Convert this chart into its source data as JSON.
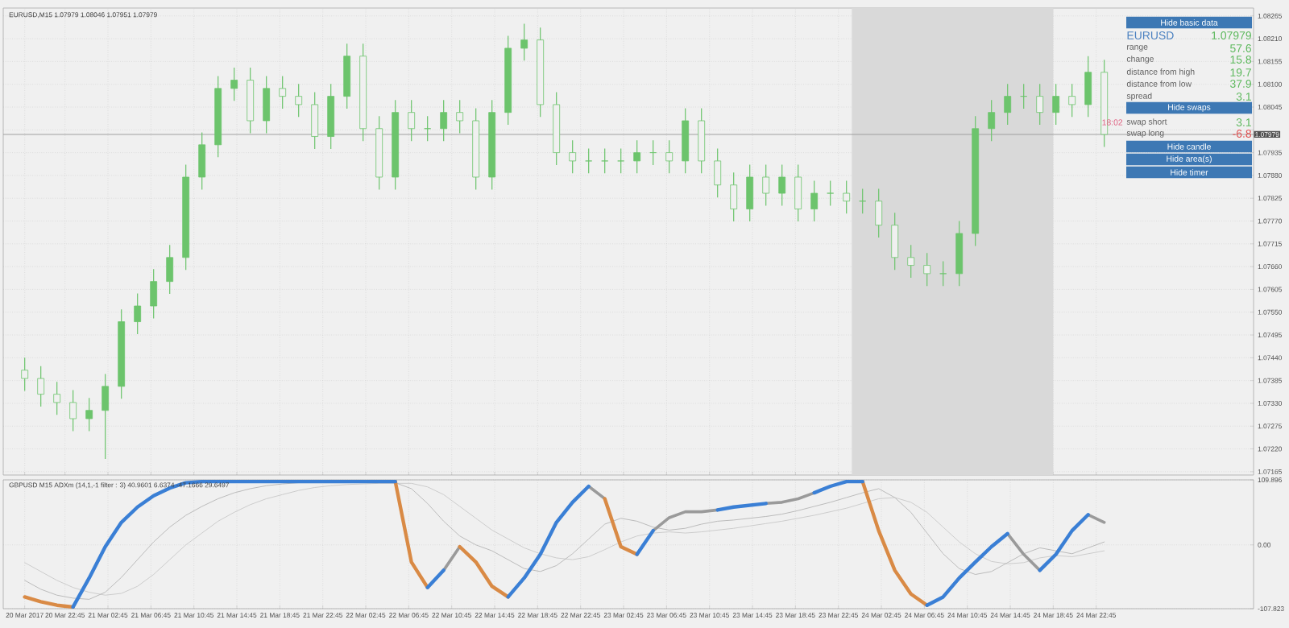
{
  "chart_data": [
    {
      "type": "candlestick",
      "title": "EURUSD,M15  1.07979 1.08046 1.07951 1.07979",
      "color": "#6cc46c",
      "x": [
        "2017-03-20T19:00",
        "2017-03-20T20:30",
        "2017-03-20T22:00",
        "2017-03-20T23:30",
        "2017-03-21T01:00",
        "2017-03-21T02:30",
        "2017-03-21T04:00",
        "2017-03-21T05:30",
        "2017-03-21T07:00",
        "2017-03-21T08:30",
        "2017-03-21T10:00",
        "2017-03-21T11:30",
        "2017-03-21T13:00",
        "2017-03-21T14:30",
        "2017-03-21T16:00",
        "2017-03-21T17:30",
        "2017-03-21T19:00",
        "2017-03-21T20:30",
        "2017-03-21T22:00",
        "2017-03-21T23:30",
        "2017-03-22T01:00",
        "2017-03-22T02:30",
        "2017-03-22T04:00",
        "2017-03-22T05:30",
        "2017-03-22T07:00",
        "2017-03-22T08:30",
        "2017-03-22T10:00",
        "2017-03-22T11:30",
        "2017-03-22T13:00",
        "2017-03-22T14:30",
        "2017-03-22T16:00",
        "2017-03-22T17:30",
        "2017-03-22T19:00",
        "2017-03-22T20:30",
        "2017-03-22T22:00",
        "2017-03-22T23:30",
        "2017-03-23T01:00",
        "2017-03-23T02:30",
        "2017-03-23T04:00",
        "2017-03-23T05:30",
        "2017-03-23T07:00",
        "2017-03-23T08:30",
        "2017-03-23T10:00",
        "2017-03-23T11:30",
        "2017-03-23T13:00",
        "2017-03-23T14:30",
        "2017-03-23T16:00",
        "2017-03-23T17:30",
        "2017-03-23T19:00",
        "2017-03-23T20:30",
        "2017-03-23T22:00",
        "2017-03-23T23:30",
        "2017-03-24T01:00",
        "2017-03-24T02:30",
        "2017-03-24T04:00",
        "2017-03-24T05:30",
        "2017-03-24T07:00",
        "2017-03-24T08:30",
        "2017-03-24T10:00",
        "2017-03-24T11:30",
        "2017-03-24T13:00",
        "2017-03-24T14:30",
        "2017-03-24T16:00",
        "2017-03-24T17:30",
        "2017-03-24T19:00",
        "2017-03-24T20:30",
        "2017-03-24T22:00",
        "2017-03-24T23:30"
      ],
      "ohlc": [
        [
          1.0741,
          1.0744,
          1.0736,
          1.0739
        ],
        [
          1.0739,
          1.0742,
          1.07322,
          1.07352
        ],
        [
          1.07352,
          1.07382,
          1.07302,
          1.07332
        ],
        [
          1.07332,
          1.07362,
          1.07263,
          1.07293
        ],
        [
          1.07293,
          1.07343,
          1.07263,
          1.07313
        ],
        [
          1.07313,
          1.07401,
          1.07196,
          1.07371
        ],
        [
          1.07371,
          1.07557,
          1.07341,
          1.07527
        ],
        [
          1.07527,
          1.07595,
          1.07497,
          1.07565
        ],
        [
          1.07565,
          1.07654,
          1.07535,
          1.07624
        ],
        [
          1.07624,
          1.07712,
          1.07594,
          1.07682
        ],
        [
          1.07682,
          1.07906,
          1.07652,
          1.07876
        ],
        [
          1.07876,
          1.07984,
          1.07846,
          1.07954
        ],
        [
          1.07954,
          1.0812,
          1.07924,
          1.0809
        ],
        [
          1.0809,
          1.0814,
          1.0806,
          1.0811
        ],
        [
          1.0811,
          1.0814,
          1.07982,
          1.08012
        ],
        [
          1.08012,
          1.0812,
          1.07982,
          1.0809
        ],
        [
          1.0809,
          1.0812,
          1.08041,
          1.08071
        ],
        [
          1.08071,
          1.08101,
          1.08021,
          1.08051
        ],
        [
          1.08051,
          1.08081,
          1.07944,
          1.07974
        ],
        [
          1.07974,
          1.08101,
          1.07944,
          1.08071
        ],
        [
          1.08071,
          1.08198,
          1.08041,
          1.08168
        ],
        [
          1.08168,
          1.08198,
          1.07963,
          1.07993
        ],
        [
          1.07993,
          1.08023,
          1.07846,
          1.07876
        ],
        [
          1.07876,
          1.08062,
          1.07846,
          1.08032
        ],
        [
          1.08032,
          1.08062,
          1.07963,
          1.07993
        ],
        [
          1.07993,
          1.08023,
          1.07963,
          1.07993
        ],
        [
          1.07993,
          1.08062,
          1.07963,
          1.08032
        ],
        [
          1.08032,
          1.08062,
          1.07982,
          1.08012
        ],
        [
          1.08012,
          1.08042,
          1.07846,
          1.07876
        ],
        [
          1.07876,
          1.08062,
          1.07846,
          1.08032
        ],
        [
          1.08032,
          1.08217,
          1.08002,
          1.08187
        ],
        [
          1.08187,
          1.08246,
          1.08157,
          1.08207
        ],
        [
          1.08207,
          1.08237,
          1.08021,
          1.08051
        ],
        [
          1.08051,
          1.08081,
          1.07905,
          1.07935
        ],
        [
          1.07935,
          1.07965,
          1.07885,
          1.07915
        ],
        [
          1.07915,
          1.07945,
          1.07885,
          1.07915
        ],
        [
          1.07915,
          1.07945,
          1.07885,
          1.07915
        ],
        [
          1.07915,
          1.07945,
          1.07885,
          1.07915
        ],
        [
          1.07915,
          1.07965,
          1.07885,
          1.07935
        ],
        [
          1.07935,
          1.07965,
          1.07905,
          1.07935
        ],
        [
          1.07935,
          1.07965,
          1.07885,
          1.07915
        ],
        [
          1.07915,
          1.08042,
          1.07885,
          1.08012
        ],
        [
          1.08012,
          1.08042,
          1.07885,
          1.07915
        ],
        [
          1.07915,
          1.07945,
          1.07827,
          1.07857
        ],
        [
          1.07857,
          1.07887,
          1.07769,
          1.07799
        ],
        [
          1.07799,
          1.07906,
          1.07769,
          1.07876
        ],
        [
          1.07876,
          1.07906,
          1.07807,
          1.07837
        ],
        [
          1.07837,
          1.07906,
          1.07807,
          1.07876
        ],
        [
          1.07876,
          1.07906,
          1.07769,
          1.07799
        ],
        [
          1.07799,
          1.07867,
          1.07769,
          1.07837
        ],
        [
          1.07837,
          1.07867,
          1.07807,
          1.07837
        ],
        [
          1.07837,
          1.07867,
          1.07788,
          1.07818
        ],
        [
          1.07818,
          1.07848,
          1.07788,
          1.07818
        ],
        [
          1.07818,
          1.07848,
          1.0773,
          1.0776
        ],
        [
          1.0776,
          1.0779,
          1.07652,
          1.07682
        ],
        [
          1.07682,
          1.07712,
          1.07633,
          1.07663
        ],
        [
          1.07663,
          1.07693,
          1.07613,
          1.07643
        ],
        [
          1.07643,
          1.07673,
          1.07613,
          1.07643
        ],
        [
          1.07643,
          1.0777,
          1.07613,
          1.0774
        ],
        [
          1.0774,
          1.08023,
          1.0771,
          1.07993
        ],
        [
          1.07993,
          1.08062,
          1.07963,
          1.08032
        ],
        [
          1.08032,
          1.08101,
          1.08002,
          1.08071
        ],
        [
          1.08071,
          1.08101,
          1.08041,
          1.08071
        ],
        [
          1.08071,
          1.08101,
          1.08002,
          1.08032
        ],
        [
          1.08032,
          1.08101,
          1.08002,
          1.08071
        ],
        [
          1.08071,
          1.08101,
          1.08021,
          1.08051
        ],
        [
          1.08051,
          1.08168,
          1.08021,
          1.08129
        ],
        [
          1.08129,
          1.08159,
          1.07949,
          1.07979
        ]
      ],
      "xlim": [
        "2017-03-20T17:00",
        "2017-03-25T13:24"
      ],
      "xticks": [
        "2017-03-20T19:00",
        "2017-03-20T22:45",
        "2017-03-21T02:45",
        "2017-03-21T06:45",
        "2017-03-21T10:45",
        "2017-03-21T14:45",
        "2017-03-21T18:45",
        "2017-03-21T22:45",
        "2017-03-22T02:45",
        "2017-03-22T06:45",
        "2017-03-22T10:45",
        "2017-03-22T14:45",
        "2017-03-22T18:45",
        "2017-03-22T22:45",
        "2017-03-23T02:45",
        "2017-03-23T06:45",
        "2017-03-23T10:45",
        "2017-03-23T14:45",
        "2017-03-23T18:45",
        "2017-03-23T22:45",
        "2017-03-24T02:45",
        "2017-03-24T06:45",
        "2017-03-24T10:45",
        "2017-03-24T14:45",
        "2017-03-24T18:45",
        "2017-03-24T22:45"
      ],
      "ylim": [
        1.07157,
        1.08284
      ],
      "yticks": [
        {
          "value": 1.07165,
          "label": "1.07165"
        },
        {
          "value": 1.0722,
          "label": "1.07220"
        },
        {
          "value": 1.07275,
          "label": "1.07275"
        },
        {
          "value": 1.0733,
          "label": "1.07330"
        },
        {
          "value": 1.07385,
          "label": "1.07385"
        },
        {
          "value": 1.0744,
          "label": "1.07440"
        },
        {
          "value": 1.07495,
          "label": "1.07495"
        },
        {
          "value": 1.0755,
          "label": "1.07550"
        },
        {
          "value": 1.07605,
          "label": "1.07605"
        },
        {
          "value": 1.0766,
          "label": "1.07660"
        },
        {
          "value": 1.07715,
          "label": "1.07715"
        },
        {
          "value": 1.0777,
          "label": "1.07770"
        },
        {
          "value": 1.07825,
          "label": "1.07825"
        },
        {
          "value": 1.0788,
          "label": "1.07880"
        },
        {
          "value": 1.07935,
          "label": "1.07935"
        },
        {
          "value": 1.0799,
          "label": null
        },
        {
          "value": 1.08045,
          "label": "1.08045"
        },
        {
          "value": 1.081,
          "label": "1.08100"
        },
        {
          "value": 1.08155,
          "label": "1.08155"
        },
        {
          "value": 1.0821,
          "label": "1.08210"
        },
        {
          "value": 1.08265,
          "label": "1.08265"
        }
      ],
      "grid": true,
      "tick_labels": "y",
      "ref_lines": [
        {
          "axis": "y",
          "value": 1.07979,
          "label": "1.07979",
          "color": "#a0a0a0"
        }
      ],
      "bands": [
        {
          "axis": "x",
          "from": "2017-03-24T00:00",
          "to": "2017-03-24T18:45",
          "color": "#d9d9d9"
        }
      ]
    },
    {
      "type": "line",
      "title": "GBPUSD M15 ADXm (14,1,-1 filter : 3) 40.9601 6.6374 -47.1666 29.6497",
      "x": [
        "2017-03-20T19:00",
        "2017-03-20T20:30",
        "2017-03-20T22:00",
        "2017-03-20T23:30",
        "2017-03-21T01:00",
        "2017-03-21T02:30",
        "2017-03-21T04:00",
        "2017-03-21T05:30",
        "2017-03-21T07:00",
        "2017-03-21T08:30",
        "2017-03-21T10:00",
        "2017-03-21T11:30",
        "2017-03-21T13:00",
        "2017-03-21T14:30",
        "2017-03-21T16:00",
        "2017-03-21T17:30",
        "2017-03-21T19:00",
        "2017-03-21T20:30",
        "2017-03-21T22:00",
        "2017-03-21T23:30",
        "2017-03-22T01:00",
        "2017-03-22T02:30",
        "2017-03-22T04:00",
        "2017-03-22T05:30",
        "2017-03-22T07:00",
        "2017-03-22T08:30",
        "2017-03-22T10:00",
        "2017-03-22T11:30",
        "2017-03-22T13:00",
        "2017-03-22T14:30",
        "2017-03-22T16:00",
        "2017-03-22T17:30",
        "2017-03-22T19:00",
        "2017-03-22T20:30",
        "2017-03-22T22:00",
        "2017-03-22T23:30",
        "2017-03-23T01:00",
        "2017-03-23T02:30",
        "2017-03-23T04:00",
        "2017-03-23T05:30",
        "2017-03-23T07:00",
        "2017-03-23T08:30",
        "2017-03-23T10:00",
        "2017-03-23T11:30",
        "2017-03-23T13:00",
        "2017-03-23T14:30",
        "2017-03-23T16:00",
        "2017-03-23T17:30",
        "2017-03-23T19:00",
        "2017-03-23T20:30",
        "2017-03-23T22:00",
        "2017-03-23T23:30",
        "2017-03-24T01:00",
        "2017-03-24T02:30",
        "2017-03-24T04:00",
        "2017-03-24T05:30",
        "2017-03-24T07:00",
        "2017-03-24T08:30",
        "2017-03-24T10:00",
        "2017-03-24T11:30",
        "2017-03-24T13:00",
        "2017-03-24T14:30",
        "2017-03-24T16:00",
        "2017-03-24T17:30",
        "2017-03-24T19:00",
        "2017-03-24T20:30",
        "2017-03-24T22:00",
        "2017-03-24T23:30"
      ],
      "series": [
        {
          "color": "#cccccc",
          "values": [
            -30,
            -45,
            -60,
            -72,
            -80,
            -85,
            -82,
            -70,
            -50,
            -25,
            0,
            20,
            40,
            55,
            68,
            78,
            85,
            92,
            97,
            100,
            102,
            103,
            104,
            104,
            104,
            98,
            85,
            65,
            45,
            25,
            10,
            -5,
            -15,
            -22,
            -25,
            -20,
            -8,
            5,
            15,
            20,
            22,
            20,
            22,
            25,
            28,
            32,
            36,
            40,
            45,
            50,
            56,
            62,
            70,
            78,
            80,
            72,
            55,
            30,
            5,
            -15,
            -28,
            -32,
            -30,
            -22,
            -18,
            -20,
            -15,
            -10
          ]
        },
        {
          "color": "#bbbbbb",
          "values": [
            -60,
            -75,
            -85,
            -90,
            -92,
            -80,
            -55,
            -25,
            5,
            30,
            50,
            65,
            78,
            88,
            95,
            100,
            103,
            105,
            105,
            105,
            105,
            105,
            105,
            105,
            95,
            70,
            40,
            15,
            0,
            -10,
            -25,
            -40,
            -45,
            -35,
            -15,
            10,
            35,
            45,
            40,
            30,
            25,
            28,
            35,
            40,
            42,
            45,
            48,
            52,
            58,
            65,
            72,
            80,
            88,
            95,
            80,
            55,
            20,
            -15,
            -40,
            -50,
            -45,
            -30,
            -15,
            -5,
            -10,
            -15,
            -5,
            5
          ]
        },
        {
          "color": "#9a9a9a",
          "values": [
            null,
            null,
            null,
            null,
            null,
            null,
            null,
            null,
            null,
            null,
            null,
            null,
            null,
            null,
            null,
            null,
            null,
            null,
            null,
            null,
            null,
            null,
            null,
            null,
            null,
            null,
            -43,
            -3,
            null,
            null,
            null,
            null,
            null,
            null,
            null,
            99,
            78,
            null,
            null,
            24,
            46,
            56,
            56,
            59,
            null,
            null,
            70,
            72,
            78,
            88,
            null,
            null,
            null,
            null,
            null,
            null,
            null,
            null,
            null,
            null,
            null,
            19,
            -16,
            -43,
            null,
            null,
            51,
            38
          ]
        },
        {
          "color": "#d98a45",
          "values": [
            -88,
            -96,
            -102,
            -105,
            null,
            null,
            null,
            null,
            null,
            null,
            null,
            null,
            null,
            null,
            null,
            null,
            null,
            null,
            null,
            null,
            null,
            null,
            null,
            107,
            -29,
            -72,
            null,
            -3,
            -29,
            -70,
            -88,
            null,
            null,
            null,
            null,
            null,
            78,
            -3,
            -16,
            null,
            null,
            null,
            null,
            null,
            null,
            null,
            null,
            null,
            null,
            null,
            null,
            null,
            107,
            24,
            -43,
            -83,
            -102,
            null,
            null,
            null,
            null,
            null,
            null,
            null,
            null,
            null,
            null,
            null
          ]
        },
        {
          "color": "#3a7fd5",
          "values": [
            null,
            null,
            null,
            -105,
            -56,
            -3,
            38,
            64,
            83,
            96,
            105,
            107,
            107,
            107,
            107,
            107,
            107,
            107,
            107,
            107,
            107,
            107,
            107,
            107,
            null,
            -72,
            -43,
            null,
            null,
            null,
            -88,
            -56,
            -16,
            38,
            72,
            99,
            null,
            null,
            -16,
            24,
            null,
            null,
            null,
            59,
            64,
            67,
            70,
            null,
            null,
            88,
            99,
            107,
            107,
            null,
            null,
            null,
            -102,
            -88,
            -56,
            -29,
            -3,
            19,
            null,
            -43,
            -16,
            24,
            51,
            null
          ]
        }
      ],
      "xlim": [
        "2017-03-20T17:00",
        "2017-03-25T13:24"
      ],
      "xticks": [
        {
          "value": "2017-03-20T19:00",
          "label": "20 Mar 2017"
        },
        {
          "value": "2017-03-20T22:45",
          "label": "20 Mar 22:45"
        },
        {
          "value": "2017-03-21T02:45",
          "label": "21 Mar 02:45"
        },
        {
          "value": "2017-03-21T06:45",
          "label": "21 Mar 06:45"
        },
        {
          "value": "2017-03-21T10:45",
          "label": "21 Mar 10:45"
        },
        {
          "value": "2017-03-21T14:45",
          "label": "21 Mar 14:45"
        },
        {
          "value": "2017-03-21T18:45",
          "label": "21 Mar 18:45"
        },
        {
          "value": "2017-03-21T22:45",
          "label": "21 Mar 22:45"
        },
        {
          "value": "2017-03-22T02:45",
          "label": "22 Mar 02:45"
        },
        {
          "value": "2017-03-22T06:45",
          "label": "22 Mar 06:45"
        },
        {
          "value": "2017-03-22T10:45",
          "label": "22 Mar 10:45"
        },
        {
          "value": "2017-03-22T14:45",
          "label": "22 Mar 14:45"
        },
        {
          "value": "2017-03-22T18:45",
          "label": "22 Mar 18:45"
        },
        {
          "value": "2017-03-22T22:45",
          "label": "22 Mar 22:45"
        },
        {
          "value": "2017-03-23T02:45",
          "label": "23 Mar 02:45"
        },
        {
          "value": "2017-03-23T06:45",
          "label": "23 Mar 06:45"
        },
        {
          "value": "2017-03-23T10:45",
          "label": "23 Mar 10:45"
        },
        {
          "value": "2017-03-23T14:45",
          "label": "23 Mar 14:45"
        },
        {
          "value": "2017-03-23T18:45",
          "label": "23 Mar 18:45"
        },
        {
          "value": "2017-03-23T22:45",
          "label": "23 Mar 22:45"
        },
        {
          "value": "2017-03-24T02:45",
          "label": "24 Mar 02:45"
        },
        {
          "value": "2017-03-24T06:45",
          "label": "24 Mar 06:45"
        },
        {
          "value": "2017-03-24T10:45",
          "label": "24 Mar 10:45"
        },
        {
          "value": "2017-03-24T14:45",
          "label": "24 Mar 14:45"
        },
        {
          "value": "2017-03-24T18:45",
          "label": "24 Mar 18:45"
        },
        {
          "value": "2017-03-24T22:45",
          "label": "24 Mar 22:45"
        }
      ],
      "ylim": [
        -107.823,
        109.896
      ],
      "yticks": [
        {
          "value": -107.823,
          "label": "-107.823"
        },
        {
          "value": 0,
          "label": "0.00"
        },
        {
          "value": 109.896,
          "label": "109.896"
        }
      ],
      "grid": true,
      "line_style": "solid"
    },
    {
      "type": "other",
      "annotations": [
        "Hide basic data",
        "EURUSD",
        "1.07979",
        "range",
        "57.6",
        "change",
        "15.8",
        "distance from high",
        "19.7",
        "distance from low",
        "37.9",
        "spread",
        "3.1",
        "Hide swaps",
        "18:02",
        "swap short",
        "3.1",
        "swap long",
        "-6.8",
        "Hide candle",
        "Hide area(s)",
        "Hide timer"
      ]
    }
  ]
}
